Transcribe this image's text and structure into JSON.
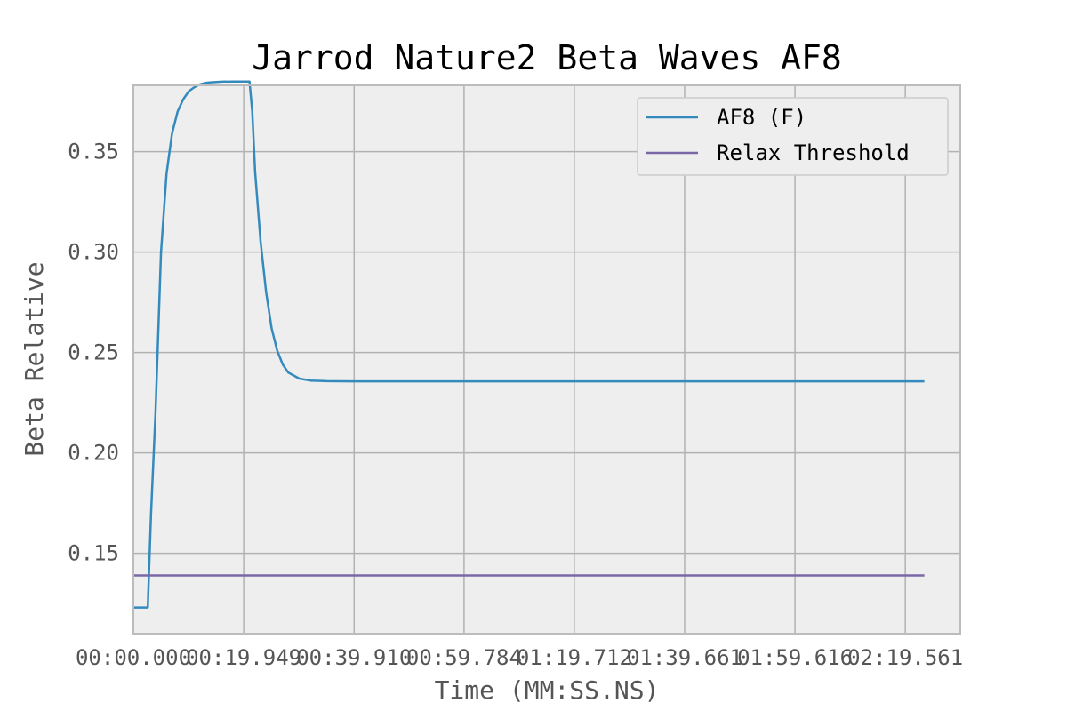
{
  "chart_data": {
    "type": "line",
    "title": "Jarrod Nature2 Beta Waves AF8",
    "xlabel": "Time (MM:SS.NS)",
    "ylabel": "Beta Relative",
    "x_tick_labels": [
      "00:00.000",
      "00:19.949",
      "00:39.910",
      "00:59.784",
      "01:19.712",
      "01:39.661",
      "01:59.616",
      "02:19.561"
    ],
    "x_tick_seconds": [
      0,
      19.949,
      39.91,
      59.784,
      79.712,
      99.661,
      119.616,
      139.561
    ],
    "xlim_seconds": [
      0,
      149.5
    ],
    "y_ticks": [
      0.15,
      0.2,
      0.25,
      0.3,
      0.35
    ],
    "y_tick_labels": [
      "0.15",
      "0.20",
      "0.25",
      "0.30",
      "0.35"
    ],
    "ylim": [
      0.11,
      0.383
    ],
    "grid": true,
    "legend_position": "top-right",
    "series": [
      {
        "name": "AF8 (F)",
        "color": "#348ABD",
        "x_seconds": [
          0,
          2.6,
          3.2,
          4.0,
          5.0,
          6.0,
          7.0,
          8.0,
          9.0,
          10.0,
          11.0,
          12.0,
          13.0,
          14.0,
          15.0,
          16.0,
          18.0,
          20.0,
          21.0,
          21.5,
          22.0,
          23.0,
          24.0,
          25.0,
          26.0,
          27.0,
          28.0,
          30.0,
          32.0,
          35.0,
          40.0,
          143.0
        ],
        "values": [
          0.123,
          0.123,
          0.17,
          0.22,
          0.3,
          0.339,
          0.359,
          0.37,
          0.376,
          0.38,
          0.382,
          0.3835,
          0.3842,
          0.3845,
          0.3847,
          0.3848,
          0.3849,
          0.3849,
          0.3849,
          0.37,
          0.34,
          0.305,
          0.28,
          0.262,
          0.251,
          0.244,
          0.24,
          0.237,
          0.236,
          0.2357,
          0.2356,
          0.2356
        ]
      },
      {
        "name": "Relax Threshold",
        "color": "#7A68A6",
        "x_seconds": [
          0,
          143.0
        ],
        "values": [
          0.139,
          0.139
        ]
      }
    ]
  }
}
